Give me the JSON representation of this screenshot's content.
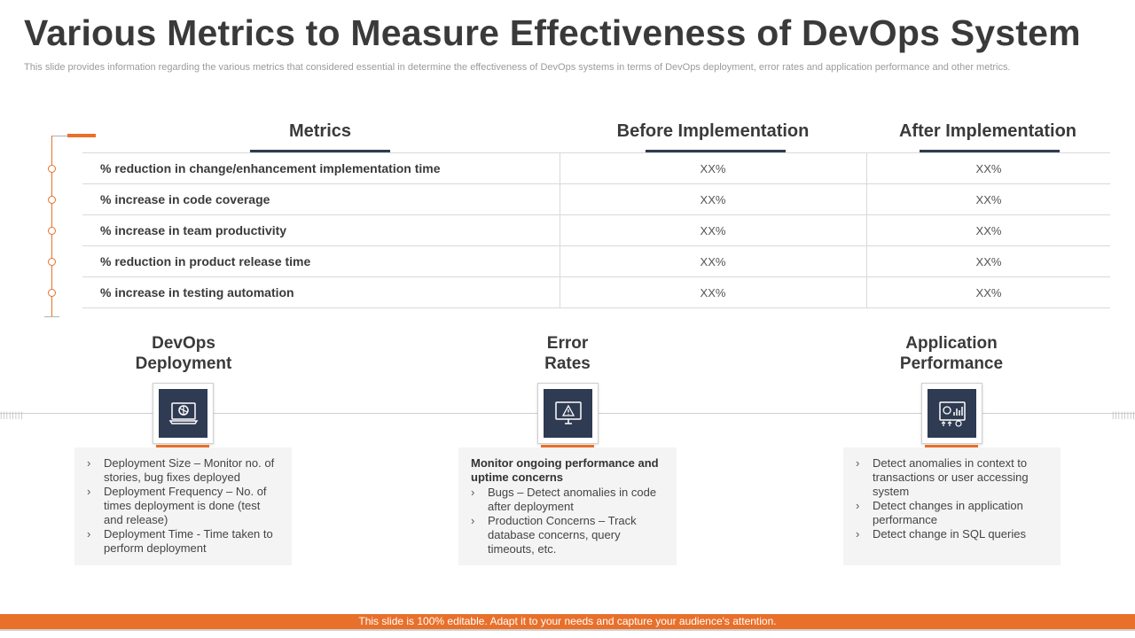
{
  "title": "Various Metrics to Measure Effectiveness of DevOps System",
  "subtitle": "This slide provides information regarding the various metrics that considered essential in determine the effectiveness of DevOps systems in terms of DevOps deployment, error rates and application performance and other metrics.",
  "table": {
    "headers": [
      "Metrics",
      "Before Implementation",
      "After Implementation"
    ],
    "rows": [
      {
        "metric": "%  reduction in change/enhancement implementation time",
        "before": "XX%",
        "after": "XX%"
      },
      {
        "metric": "%  increase in code coverage",
        "before": "XX%",
        "after": "XX%"
      },
      {
        "metric": "%  increase in team productivity",
        "before": "XX%",
        "after": "XX%"
      },
      {
        "metric": "%  reduction in product release time",
        "before": "XX%",
        "after": "XX%"
      },
      {
        "metric": "%  increase in testing automation",
        "before": "XX%",
        "after": "XX%"
      }
    ]
  },
  "categories": [
    {
      "title_line1": "DevOps",
      "title_line2": "Deployment",
      "icon": "deployment-icon",
      "heading": "",
      "bullets": [
        "Deployment Size – Monitor no. of stories, bug fixes deployed",
        "Deployment Frequency  – No. of times deployment  is done (test and release)",
        "Deployment Time  - Time taken to perform  deployment"
      ]
    },
    {
      "title_line1": "Error",
      "title_line2": "Rates",
      "icon": "monitor-alert-icon",
      "heading": "Monitor ongoing performance and uptime concerns",
      "bullets": [
        "Bugs – Detect anomalies in code after deployment",
        "Production Concerns – Track database concerns, query timeouts, etc."
      ]
    },
    {
      "title_line1": "Application",
      "title_line2": "Performance",
      "icon": "performance-dashboard-icon",
      "heading": "",
      "bullets": [
        "Detect anomalies in context to transactions or user accessing system",
        "Detect changes in application performance",
        "Detect change in SQL queries"
      ]
    }
  ],
  "footer": "This slide is 100% editable. Adapt it to your needs and capture your audience's attention.",
  "colors": {
    "accent": "#e8702a",
    "navy": "#2f3b52",
    "card_bg": "#f4f4f4"
  }
}
